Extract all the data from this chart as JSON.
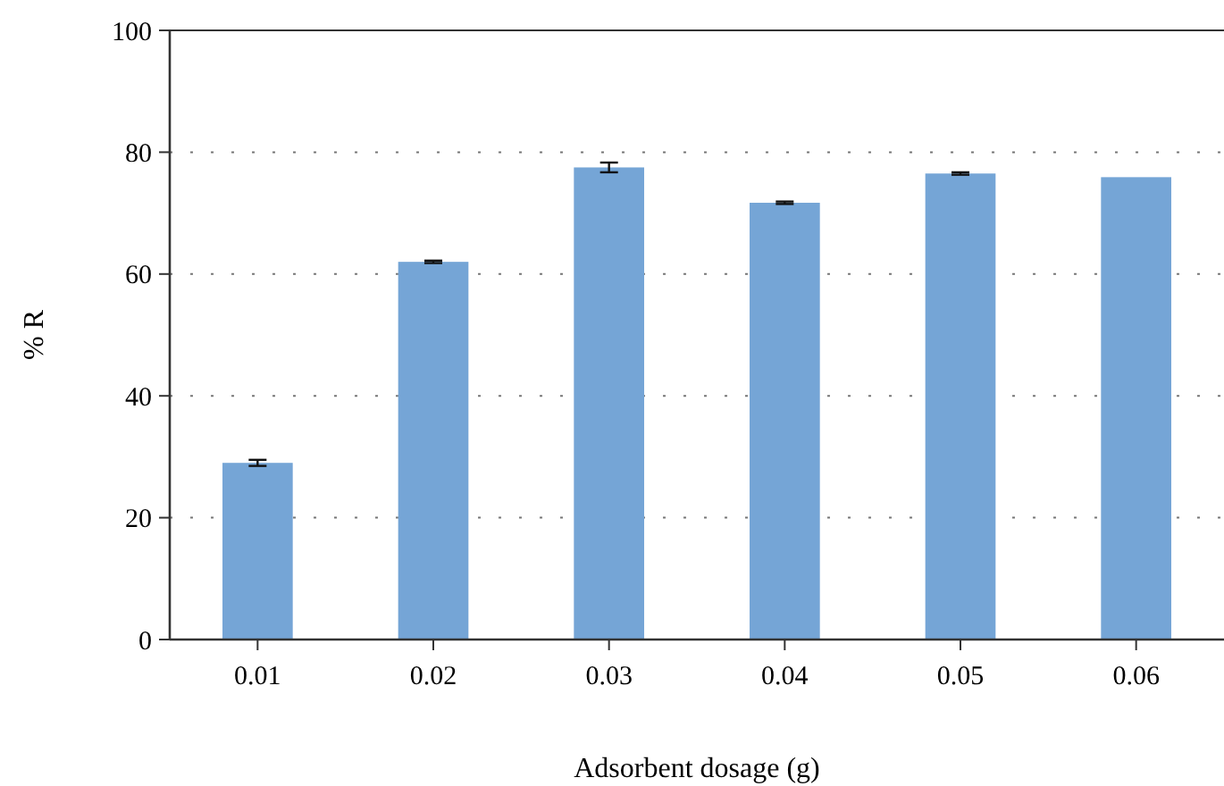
{
  "chart_data": {
    "type": "bar",
    "xlabel": "Adsorbent dosage (g)",
    "ylabel": "% R",
    "categories": [
      "0.01",
      "0.02",
      "0.03",
      "0.04",
      "0.05",
      "0.06"
    ],
    "values": [
      29,
      62,
      77.5,
      71.7,
      76.5,
      75.9
    ],
    "errors": [
      0.5,
      0.2,
      0.8,
      0.2,
      0.2,
      null
    ],
    "color": "#75a5d6",
    "ylim": [
      0,
      100
    ],
    "yticks": [
      0,
      20,
      40,
      60,
      80,
      100
    ],
    "grid": "y"
  }
}
